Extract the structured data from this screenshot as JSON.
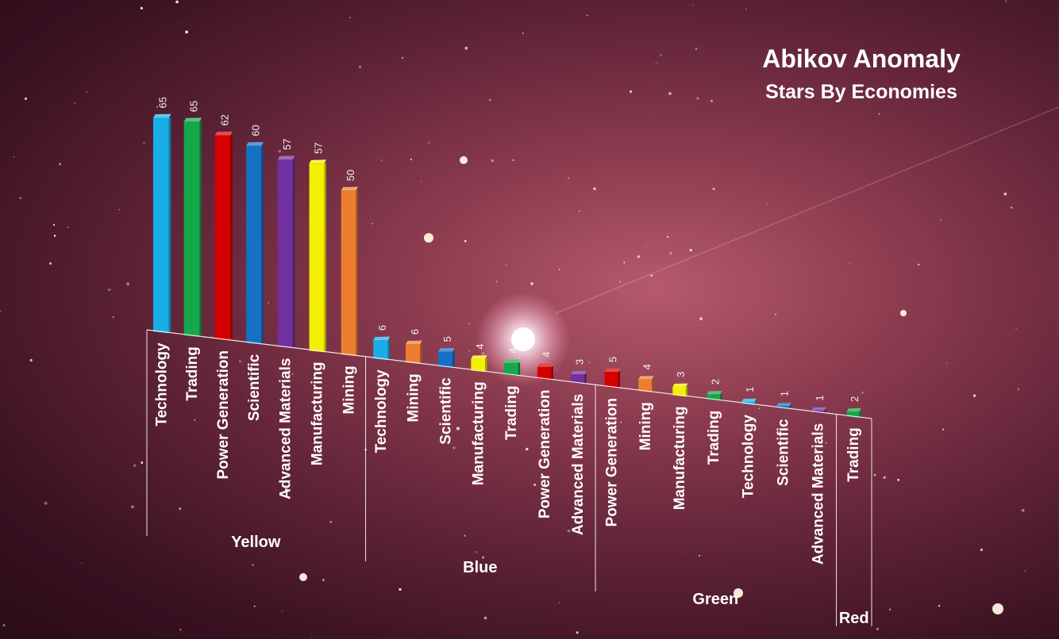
{
  "chart_data": {
    "type": "bar",
    "title": "Abikov Anomaly",
    "subtitle": "Stars By Economies",
    "groups": [
      {
        "name": "Yellow",
        "bars": [
          {
            "label": "Technology",
            "value": 65,
            "color": "#1aaee8"
          },
          {
            "label": "Trading",
            "value": 65,
            "color": "#15a84a"
          },
          {
            "label": "Power Generation",
            "value": 62,
            "color": "#d40000"
          },
          {
            "label": "Scientific",
            "value": 60,
            "color": "#1670c4"
          },
          {
            "label": "Advanced Materials",
            "value": 57,
            "color": "#7030a0"
          },
          {
            "label": "Manufacturing",
            "value": 57,
            "color": "#f4f000"
          },
          {
            "label": "Mining",
            "value": 50,
            "color": "#ed7d31"
          }
        ]
      },
      {
        "name": "Blue",
        "bars": [
          {
            "label": "Technology",
            "value": 6,
            "color": "#1aaee8"
          },
          {
            "label": "Mining",
            "value": 6,
            "color": "#ed7d31"
          },
          {
            "label": "Scientific",
            "value": 5,
            "color": "#1670c4"
          },
          {
            "label": "Manufacturing",
            "value": 4,
            "color": "#f4f000"
          },
          {
            "label": "Trading",
            "value": 4,
            "color": "#15a84a"
          },
          {
            "label": "Power Generation",
            "value": 4,
            "color": "#d40000"
          },
          {
            "label": "Advanced Materials",
            "value": 3,
            "color": "#7030a0"
          }
        ]
      },
      {
        "name": "Green",
        "bars": [
          {
            "label": "Power Generation",
            "value": 5,
            "color": "#d40000"
          },
          {
            "label": "Mining",
            "value": 4,
            "color": "#ed7d31"
          },
          {
            "label": "Manufacturing",
            "value": 3,
            "color": "#f4f000"
          },
          {
            "label": "Trading",
            "value": 2,
            "color": "#15a84a"
          },
          {
            "label": "Technology",
            "value": 1,
            "color": "#1aaee8"
          },
          {
            "label": "Scientific",
            "value": 1,
            "color": "#1670c4"
          },
          {
            "label": "Advanced Materials",
            "value": 1,
            "color": "#7030a0"
          }
        ]
      },
      {
        "name": "Red",
        "bars": [
          {
            "label": "Trading",
            "value": 2,
            "color": "#15a84a"
          }
        ]
      }
    ]
  }
}
